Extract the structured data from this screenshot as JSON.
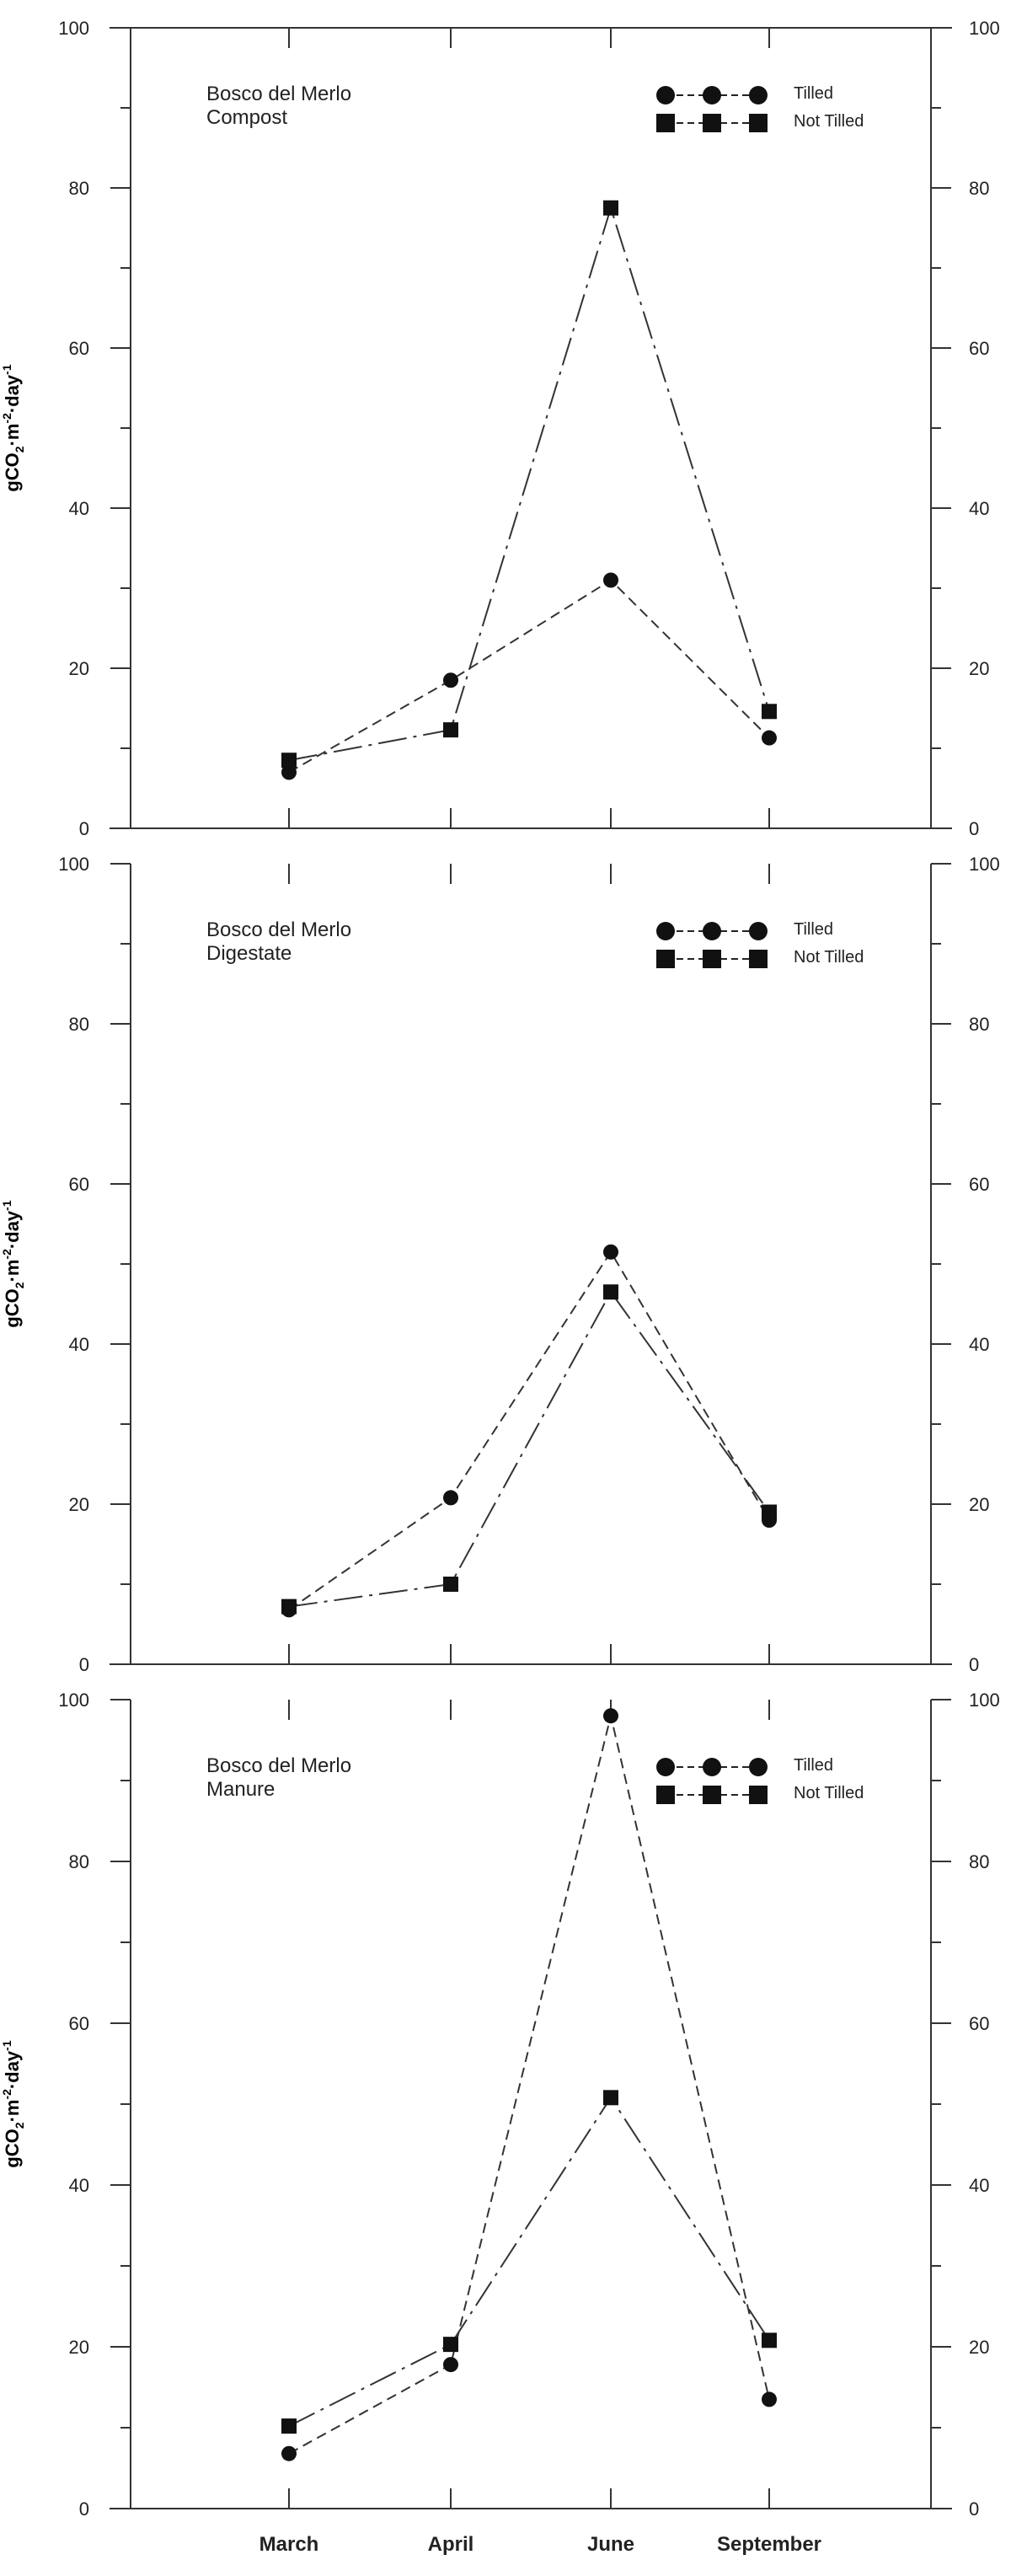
{
  "chart_data": [
    {
      "type": "line",
      "title": "Bosco del Merlo",
      "subtitle": "Compost",
      "ylabel": "gCO₂·m⁻²·day⁻¹",
      "ylim": [
        0,
        100
      ],
      "yticks": [
        0,
        20,
        40,
        60,
        80,
        100
      ],
      "categories": [
        "March",
        "April",
        "June",
        "September"
      ],
      "legend_position": "top-right",
      "series": [
        {
          "name": "Tilled",
          "marker": "circle",
          "values": [
            7,
            18.5,
            31,
            11.3
          ]
        },
        {
          "name": "Not Tilled",
          "marker": "square",
          "values": [
            8.5,
            12.3,
            77.5,
            14.6
          ]
        }
      ]
    },
    {
      "type": "line",
      "title": "Bosco del Merlo",
      "subtitle": "Digestate",
      "ylabel": "gCO₂·m⁻²·day⁻¹",
      "ylim": [
        0,
        100
      ],
      "yticks": [
        0,
        20,
        40,
        60,
        80,
        100
      ],
      "categories": [
        "March",
        "April",
        "June",
        "September"
      ],
      "legend_position": "top-right",
      "series": [
        {
          "name": "Tilled",
          "marker": "circle",
          "values": [
            6.8,
            20.8,
            51.5,
            18
          ]
        },
        {
          "name": "Not Tilled",
          "marker": "square",
          "values": [
            7.2,
            10,
            46.5,
            19
          ]
        }
      ]
    },
    {
      "type": "line",
      "title": "Bosco del Merlo",
      "subtitle": "Manure",
      "ylabel": "gCO₂·m⁻²·day⁻¹",
      "ylim": [
        0,
        100
      ],
      "yticks": [
        0,
        20,
        40,
        60,
        80,
        100
      ],
      "categories": [
        "March",
        "April",
        "June",
        "September"
      ],
      "legend_position": "top-right",
      "series": [
        {
          "name": "Tilled",
          "marker": "circle",
          "values": [
            6.8,
            17.8,
            98,
            13.5
          ]
        },
        {
          "name": "Not Tilled",
          "marker": "square",
          "values": [
            10.2,
            20.3,
            50.8,
            20.8
          ]
        }
      ]
    }
  ],
  "ylabel_parts": {
    "main": "gCO",
    "sub": "2",
    "mid": "·m",
    "sup1": "-2",
    "dot": "·day",
    "sup2": "-1"
  }
}
